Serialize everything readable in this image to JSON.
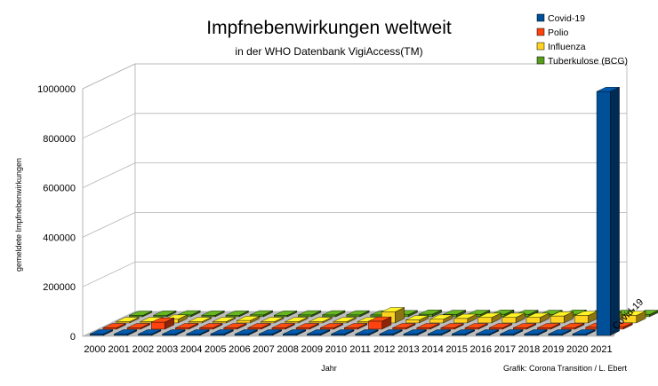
{
  "chart_data": {
    "type": "bar",
    "title": "Impfnebenwirkungen weltweit",
    "subtitle": "in der WHO Datenbank VigiAccess(TM)",
    "xlabel": "Jahr",
    "ylabel": "gemeldete Impfnebenwirkungen",
    "depth_axis_label": "Covid-19",
    "credit": "Grafik: Corona Transition / L. Ebert",
    "ylim": [
      0,
      1000000
    ],
    "y_ticks": [
      "0",
      "200000",
      "400000",
      "600000",
      "800000",
      "1000000"
    ],
    "y_tick_values": [
      0,
      200000,
      400000,
      600000,
      800000,
      1000000
    ],
    "categories": [
      "2000",
      "2001",
      "2002",
      "2003",
      "2004",
      "2005",
      "2006",
      "2007",
      "2008",
      "2009",
      "2010",
      "2011",
      "2012",
      "2013",
      "2014",
      "2015",
      "2016",
      "2017",
      "2018",
      "2019",
      "2020",
      "2021"
    ],
    "legend_position": "top-right",
    "grid": true,
    "series": [
      {
        "name": "Covid-19",
        "color": "#004f99",
        "values": [
          0,
          0,
          0,
          0,
          0,
          0,
          0,
          0,
          0,
          0,
          0,
          0,
          0,
          0,
          0,
          0,
          0,
          0,
          0,
          0,
          0,
          985000
        ]
      },
      {
        "name": "Polio",
        "color": "#ff420e",
        "values": [
          1000,
          1000,
          28000,
          2000,
          2000,
          2000,
          2000,
          2000,
          2000,
          2000,
          2000,
          32000,
          3000,
          3000,
          3000,
          4000,
          4000,
          4000,
          5000,
          6000,
          7000,
          8000
        ]
      },
      {
        "name": "Influenza",
        "color": "#ffd320",
        "values": [
          1000,
          1000,
          15000,
          5000,
          5000,
          10000,
          5000,
          5000,
          5000,
          5000,
          5000,
          45000,
          12000,
          15000,
          18000,
          22000,
          22000,
          22000,
          28000,
          30000,
          28000,
          30000
        ]
      },
      {
        "name": "Tuberkulose  (BCG)",
        "color": "#579d1c",
        "values": [
          5000,
          6000,
          7000,
          6000,
          6000,
          7000,
          6000,
          7000,
          7000,
          7000,
          7000,
          8000,
          10000,
          9000,
          9000,
          10000,
          9000,
          9000,
          10000,
          10000,
          9000,
          9000
        ]
      }
    ]
  }
}
